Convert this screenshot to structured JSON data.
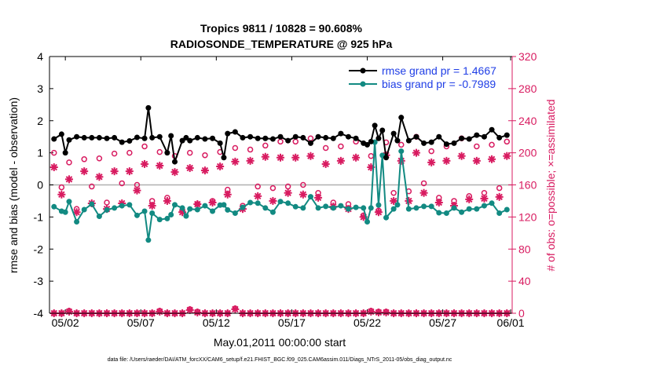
{
  "chart_data": {
    "type": "line",
    "title_line1": "Tropics 9811 / 10828 = 90.608%",
    "title_line2": "RADIOSONDE_TEMPERATURE @ 925 hPa",
    "xlabel": "May.01,2011 00:00:00 start",
    "ylabel_left": "rmse and bias (model - observation)",
    "ylabel_right": "# of obs: o=possible; ×=assimilated",
    "footer": "data file: /Users/raeder/DAI/ATM_forcXX/CAM6_setup/f.e21.FHIST_BGC.f09_025.CAM6assim.011/Diags_NTrS_2011-05/obs_diag_output.nc",
    "ylim_left": [
      -4,
      4
    ],
    "yticks_left": [
      "-4",
      "-3",
      "-2",
      "-1",
      "0",
      "1",
      "2",
      "3",
      "4"
    ],
    "ylim_right": [
      0,
      320
    ],
    "yticks_right": [
      "0",
      "40",
      "80",
      "120",
      "160",
      "200",
      "240",
      "280",
      "320"
    ],
    "xlim_days": [
      0.45,
      31.1
    ],
    "xticks": [
      {
        "day": 1.5,
        "label": "05/02"
      },
      {
        "day": 6.5,
        "label": "05/07"
      },
      {
        "day": 11.5,
        "label": "05/12"
      },
      {
        "day": 16.5,
        "label": "05/17"
      },
      {
        "day": 21.5,
        "label": "05/22"
      },
      {
        "day": 26.5,
        "label": "05/27"
      },
      {
        "day": 31.0,
        "label": "06/01"
      }
    ],
    "legend": [
      {
        "label": "rmse grand pr = 1.4667",
        "color": "#000000"
      },
      {
        "label": "bias grand pr = -0.7989",
        "color": "#128a82"
      }
    ],
    "colors": {
      "rmse": "#000000",
      "bias": "#128a82",
      "obs": "#d81b60",
      "legend_text": "#1f3ee6",
      "zero_line": "#b0b0b0"
    },
    "series": [
      {
        "name": "rmse",
        "x": [
          0.75,
          1.25,
          1.5,
          1.75,
          2.25,
          2.75,
          3.25,
          3.75,
          4.25,
          4.75,
          5.25,
          5.75,
          6.25,
          6.75,
          7.0,
          7.25,
          7.75,
          8.25,
          8.5,
          8.75,
          9.25,
          9.5,
          9.75,
          10.25,
          10.75,
          11.25,
          11.75,
          12.0,
          12.25,
          12.75,
          13.25,
          13.75,
          14.25,
          14.75,
          15.25,
          15.75,
          16.25,
          16.75,
          17.25,
          17.75,
          18.25,
          18.75,
          19.25,
          19.75,
          20.25,
          20.75,
          21.25,
          21.5,
          21.75,
          22.0,
          22.25,
          22.5,
          22.75,
          23.25,
          23.5,
          23.75,
          24.25,
          24.75,
          25.25,
          25.75,
          26.25,
          26.75,
          27.25,
          27.75,
          28.25,
          28.75,
          29.25,
          29.75,
          30.25,
          30.75
        ],
        "values": [
          1.43,
          1.58,
          1.0,
          1.4,
          1.5,
          1.47,
          1.47,
          1.47,
          1.45,
          1.47,
          1.33,
          1.37,
          1.48,
          1.45,
          2.4,
          1.47,
          1.5,
          1.0,
          1.53,
          0.72,
          1.38,
          1.47,
          1.38,
          1.47,
          1.43,
          1.45,
          1.3,
          0.85,
          1.6,
          1.65,
          1.47,
          1.5,
          1.45,
          1.45,
          1.43,
          1.5,
          1.38,
          1.5,
          1.47,
          1.3,
          1.5,
          1.47,
          1.45,
          1.6,
          1.5,
          1.45,
          1.3,
          1.25,
          1.35,
          1.85,
          1.45,
          1.7,
          0.85,
          1.6,
          1.38,
          2.1,
          1.38,
          1.5,
          1.3,
          1.33,
          1.5,
          1.27,
          1.3,
          1.45,
          1.43,
          1.55,
          1.5,
          1.72,
          1.47,
          1.55
        ]
      },
      {
        "name": "bias",
        "x": [
          0.75,
          1.25,
          1.5,
          1.75,
          2.25,
          2.75,
          3.25,
          3.75,
          4.25,
          4.75,
          5.25,
          5.75,
          6.25,
          6.75,
          7.0,
          7.25,
          7.75,
          8.25,
          8.5,
          8.75,
          9.25,
          9.5,
          9.75,
          10.25,
          10.75,
          11.25,
          11.75,
          12.0,
          12.25,
          12.75,
          13.25,
          13.75,
          14.25,
          14.75,
          15.25,
          15.75,
          16.25,
          16.75,
          17.25,
          17.75,
          18.25,
          18.75,
          19.25,
          19.75,
          20.25,
          20.75,
          21.25,
          21.5,
          21.75,
          22.0,
          22.25,
          22.5,
          22.75,
          23.25,
          23.5,
          23.75,
          24.25,
          24.75,
          25.25,
          25.75,
          26.25,
          26.75,
          27.25,
          27.75,
          28.25,
          28.75,
          29.25,
          29.75,
          30.25,
          30.75
        ],
        "values": [
          -0.68,
          -0.82,
          -0.85,
          -0.52,
          -1.15,
          -0.77,
          -0.6,
          -0.98,
          -0.78,
          -0.72,
          -0.65,
          -0.62,
          -0.95,
          -0.82,
          -1.72,
          -0.88,
          -1.08,
          -1.05,
          -0.93,
          -0.62,
          -0.72,
          -0.97,
          -0.75,
          -0.77,
          -0.65,
          -0.82,
          -0.63,
          -0.62,
          -0.78,
          -0.88,
          -0.7,
          -0.55,
          -0.57,
          -0.72,
          -0.85,
          -0.52,
          -0.57,
          -0.68,
          -0.72,
          -0.37,
          -0.72,
          -0.67,
          -0.72,
          -0.65,
          -0.75,
          -0.7,
          -0.72,
          -1.15,
          -0.72,
          1.33,
          -0.63,
          0.92,
          -1.02,
          -0.75,
          -0.62,
          1.05,
          -0.75,
          -0.72,
          -0.67,
          -0.67,
          -0.87,
          -0.88,
          -0.72,
          -0.85,
          -0.75,
          -0.75,
          -0.65,
          -0.57,
          -0.88,
          -0.77
        ]
      },
      {
        "name": "obs_possible",
        "x": [
          0.75,
          1.25,
          1.75,
          2.25,
          2.75,
          3.25,
          3.75,
          4.25,
          4.75,
          5.25,
          5.75,
          6.25,
          6.75,
          7.25,
          7.75,
          8.25,
          8.75,
          9.25,
          9.75,
          10.25,
          10.75,
          11.25,
          11.75,
          12.25,
          12.75,
          13.25,
          13.75,
          14.25,
          14.75,
          15.25,
          15.75,
          16.25,
          16.75,
          17.25,
          17.75,
          18.25,
          18.75,
          19.25,
          19.75,
          20.25,
          20.75,
          21.25,
          21.75,
          22.25,
          22.75,
          23.25,
          23.75,
          24.25,
          24.75,
          25.25,
          25.75,
          26.25,
          26.75,
          27.25,
          27.75,
          28.25,
          28.75,
          29.25,
          29.75,
          30.25,
          30.75
        ],
        "values": [
          200,
          157,
          188,
          130,
          192,
          158,
          193,
          138,
          199,
          162,
          200,
          160,
          208,
          140,
          201,
          144,
          196,
          128,
          200,
          136,
          197,
          140,
          201,
          154,
          206,
          134,
          204,
          158,
          209,
          156,
          214,
          158,
          214,
          160,
          218,
          150,
          206,
          138,
          208,
          136,
          214,
          122,
          196,
          128,
          213,
          150,
          210,
          152,
          220,
          162,
          202,
          144,
          208,
          140,
          218,
          146,
          208,
          150,
          210,
          156,
          214
        ]
      },
      {
        "name": "obs_assimilated",
        "x": [
          0.75,
          1.25,
          1.75,
          2.25,
          2.75,
          3.25,
          3.75,
          4.25,
          4.75,
          5.25,
          5.75,
          6.25,
          6.75,
          7.25,
          7.75,
          8.25,
          8.75,
          9.25,
          9.75,
          10.25,
          10.75,
          11.25,
          11.75,
          12.25,
          12.75,
          13.25,
          13.75,
          14.25,
          14.75,
          15.25,
          15.75,
          16.25,
          16.75,
          17.25,
          17.75,
          18.25,
          18.75,
          19.25,
          19.75,
          20.25,
          20.75,
          21.25,
          21.75,
          22.25,
          22.75,
          23.25,
          23.75,
          24.25,
          24.75,
          25.25,
          25.75,
          26.25,
          26.75,
          27.25,
          27.75,
          28.25,
          28.75,
          29.25,
          29.75,
          30.25,
          30.75
        ],
        "values": [
          182,
          148,
          167,
          126,
          177,
          137,
          170,
          130,
          177,
          137,
          177,
          153,
          186,
          134,
          184,
          140,
          176,
          126,
          181,
          136,
          178,
          138,
          183,
          148,
          189,
          130,
          190,
          146,
          195,
          140,
          194,
          150,
          194,
          148,
          196,
          144,
          186,
          133,
          190,
          130,
          194,
          120,
          182,
          126,
          197,
          140,
          190,
          140,
          200,
          150,
          188,
          138,
          190,
          134,
          196,
          142,
          190,
          143,
          192,
          145,
          196
        ]
      },
      {
        "name": "obs_possible_bottom",
        "x": [
          0.75,
          1.25,
          1.75,
          2.25,
          2.75,
          3.25,
          3.75,
          4.25,
          4.75,
          5.25,
          5.75,
          6.25,
          6.75,
          7.25,
          7.75,
          8.25,
          8.75,
          9.25,
          9.75,
          10.25,
          10.75,
          11.25,
          11.75,
          12.25,
          12.75,
          13.25,
          13.75,
          14.25,
          14.75,
          15.25,
          15.75,
          16.25,
          16.75,
          17.25,
          17.75,
          18.25,
          18.75,
          19.25,
          19.75,
          20.25,
          20.75,
          21.25,
          21.75,
          22.25,
          22.75,
          23.25,
          23.75,
          24.25,
          24.75,
          25.25,
          25.75,
          26.25,
          26.75,
          27.25,
          27.75,
          28.25,
          28.75,
          29.25,
          29.75,
          30.25,
          30.75
        ],
        "values": [
          0,
          0,
          3,
          0,
          0,
          0,
          0,
          0,
          0,
          0,
          0,
          0,
          0,
          0,
          3,
          0,
          0,
          0,
          5,
          2,
          0,
          0,
          0,
          0,
          6,
          0,
          0,
          0,
          0,
          0,
          0,
          0,
          0,
          0,
          0,
          0,
          0,
          0,
          0,
          0,
          0,
          0,
          3,
          2,
          2,
          0,
          0,
          0,
          0,
          0,
          0,
          0,
          0,
          0,
          0,
          0,
          0,
          0,
          0,
          0,
          0
        ]
      },
      {
        "name": "obs_assimilated_bottom",
        "x": [
          0.75,
          1.25,
          1.75,
          2.25,
          2.75,
          3.25,
          3.75,
          4.25,
          4.75,
          5.25,
          5.75,
          6.25,
          6.75,
          7.25,
          7.75,
          8.25,
          8.75,
          9.25,
          9.75,
          10.25,
          10.75,
          11.25,
          11.75,
          12.25,
          12.75,
          13.25,
          13.75,
          14.25,
          14.75,
          15.25,
          15.75,
          16.25,
          16.75,
          17.25,
          17.75,
          18.25,
          18.75,
          19.25,
          19.75,
          20.25,
          20.75,
          21.25,
          21.75,
          22.25,
          22.75,
          23.25,
          23.75,
          24.25,
          24.75,
          25.25,
          25.75,
          26.25,
          26.75,
          27.25,
          27.75,
          28.25,
          28.75,
          29.25,
          29.75,
          30.25,
          30.75
        ],
        "values": [
          0,
          0,
          2,
          0,
          0,
          0,
          0,
          0,
          0,
          0,
          0,
          0,
          0,
          0,
          2,
          0,
          0,
          0,
          4,
          1,
          0,
          0,
          0,
          0,
          5,
          0,
          0,
          0,
          0,
          0,
          0,
          0,
          0,
          0,
          0,
          0,
          0,
          0,
          0,
          0,
          0,
          0,
          2,
          1,
          1,
          0,
          0,
          0,
          0,
          0,
          0,
          0,
          0,
          0,
          0,
          0,
          0,
          0,
          0,
          0,
          0
        ]
      }
    ]
  }
}
